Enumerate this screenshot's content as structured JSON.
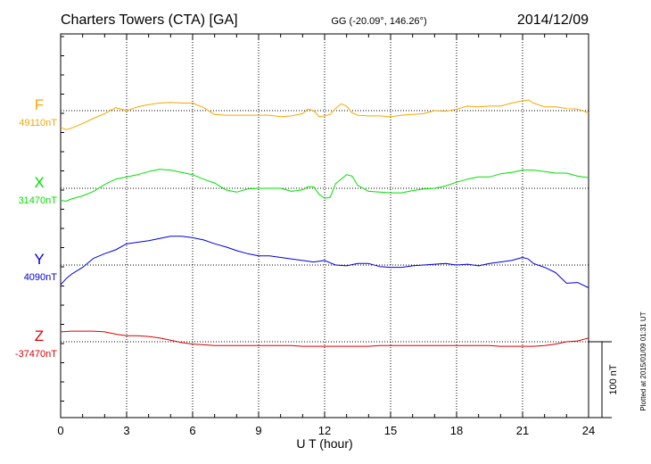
{
  "header": {
    "station": "Charters Towers (CTA)  [GA]",
    "coords": "GG (-20.09°, 146.26°)",
    "date": "2014/12/09"
  },
  "footer": {
    "plotted": "Plotted at 2015/01/09 01:31  UT"
  },
  "chart_data": {
    "type": "line",
    "xlabel": "U T (hour)",
    "xlim": [
      0,
      24
    ],
    "xticks": [
      0,
      3,
      6,
      9,
      12,
      15,
      18,
      21,
      24
    ],
    "scale_bar_label": "100 nT",
    "grid": true,
    "series": [
      {
        "name": "F",
        "baseline_label": "49110nT",
        "color": "#f5a800",
        "x": [
          0,
          0.25,
          0.5,
          1,
          1.5,
          2,
          2.5,
          3,
          3.5,
          4,
          4.5,
          5,
          5.5,
          6,
          6.5,
          7,
          7.5,
          8,
          8.5,
          9,
          9.5,
          10,
          10.5,
          11,
          11.25,
          11.5,
          11.75,
          12,
          12.25,
          12.5,
          12.75,
          13,
          13.25,
          13.5,
          14,
          14.5,
          15,
          15.5,
          16,
          16.5,
          17,
          17.5,
          18,
          18.5,
          19,
          19.5,
          20,
          20.5,
          21,
          21.25,
          21.5,
          22,
          22.5,
          23,
          23.5,
          24
        ],
        "y": [
          -22,
          -25,
          -23,
          -17,
          -10,
          -4,
          4,
          0,
          5,
          8,
          10,
          11,
          10,
          10,
          4,
          -5,
          -6,
          -6,
          -6,
          -6,
          -6,
          -8,
          -7,
          -4,
          2,
          0,
          -8,
          -7,
          -5,
          3,
          9,
          6,
          -3,
          -6,
          -7,
          -7,
          -8,
          -6,
          -5,
          -4,
          0,
          -1,
          2,
          6,
          5,
          6,
          6,
          10,
          13,
          14,
          10,
          5,
          5,
          3,
          2,
          -3
        ]
      },
      {
        "name": "X",
        "baseline_label": "31470nT",
        "color": "#00e000",
        "x": [
          0,
          0.25,
          0.5,
          1,
          1.5,
          2,
          2.5,
          3,
          3.5,
          4,
          4.5,
          5,
          5.5,
          6,
          6.5,
          7,
          7.5,
          8,
          8.5,
          9,
          9.5,
          10,
          10.5,
          11,
          11.25,
          11.5,
          11.75,
          12,
          12.25,
          12.5,
          12.75,
          13,
          13.25,
          13.5,
          14,
          14.5,
          15,
          15.5,
          16,
          16.5,
          17,
          17.5,
          18,
          18.5,
          19,
          19.5,
          20,
          20.5,
          21,
          21.5,
          22,
          22.5,
          23,
          23.5,
          24
        ],
        "y": [
          -16,
          -17,
          -14,
          -10,
          -4,
          5,
          12,
          15,
          18,
          22,
          25,
          24,
          21,
          18,
          12,
          7,
          -2,
          -5,
          -1,
          0,
          0,
          0,
          -4,
          -2,
          2,
          2,
          -8,
          -13,
          -12,
          6,
          12,
          18,
          16,
          4,
          -4,
          -5,
          -6,
          -6,
          -3,
          -1,
          0,
          3,
          8,
          12,
          15,
          15,
          19,
          21,
          24,
          24,
          22,
          20,
          20,
          16,
          14
        ]
      },
      {
        "name": "Y",
        "baseline_label": "4090nT",
        "color": "#0000dc",
        "x": [
          0,
          0.25,
          0.5,
          1,
          1.5,
          2,
          2.5,
          3,
          3.5,
          4,
          4.5,
          5,
          5.5,
          6,
          6.5,
          7,
          7.5,
          8,
          8.5,
          9,
          9.5,
          10,
          10.5,
          11,
          11.5,
          12,
          12.5,
          13,
          13.5,
          14,
          14.5,
          15,
          15.5,
          16,
          16.5,
          17,
          17.5,
          18,
          18.5,
          19,
          19.5,
          20,
          20.5,
          21,
          21.25,
          21.5,
          22,
          22.5,
          23,
          23.5,
          24
        ],
        "y": [
          -26,
          -18,
          -12,
          -3,
          9,
          15,
          20,
          28,
          30,
          32,
          35,
          38,
          38,
          36,
          33,
          28,
          24,
          19,
          15,
          12,
          12,
          10,
          8,
          6,
          4,
          6,
          0,
          -1,
          2,
          2,
          -2,
          -3,
          -3,
          -1,
          0,
          1,
          2,
          0,
          1,
          -1,
          2,
          4,
          6,
          10,
          8,
          2,
          -3,
          -10,
          -24,
          -23,
          -30
        ]
      },
      {
        "name": "Z",
        "baseline_label": "-37470nT",
        "color": "#dc0000",
        "x": [
          0,
          0.5,
          1,
          1.5,
          2,
          2.5,
          3,
          3.5,
          4,
          4.5,
          5,
          5.5,
          6,
          6.5,
          7,
          7.5,
          8,
          8.5,
          9,
          9.5,
          10,
          10.5,
          11,
          11.5,
          12,
          12.5,
          13,
          13.5,
          14,
          14.5,
          15,
          15.5,
          16,
          16.5,
          17,
          17.5,
          18,
          18.5,
          19,
          19.5,
          20,
          20.5,
          21,
          21.5,
          22,
          22.5,
          23,
          23.5,
          24
        ],
        "y": [
          13,
          14,
          14,
          14,
          13,
          10,
          8,
          8,
          7,
          5,
          2,
          -1,
          -3,
          -4,
          -5,
          -5,
          -5,
          -5,
          -5,
          -5,
          -5,
          -5,
          -6,
          -6,
          -6,
          -6,
          -6,
          -6,
          -6,
          -5,
          -5,
          -5,
          -5,
          -5,
          -5,
          -5,
          -5,
          -5,
          -5,
          -5,
          -6,
          -6,
          -6,
          -6,
          -5,
          -3,
          0,
          1,
          5
        ]
      }
    ]
  }
}
